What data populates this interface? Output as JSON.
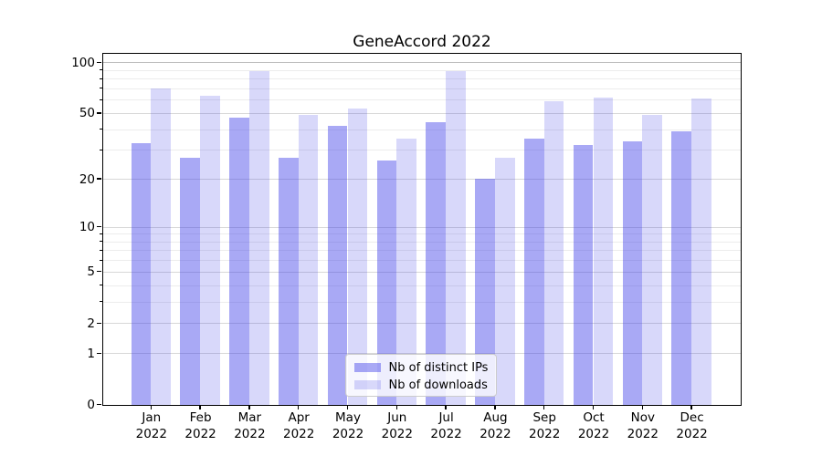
{
  "chart_data": {
    "type": "bar",
    "title": "GeneAccord 2022",
    "categories": [
      "Jan",
      "Feb",
      "Mar",
      "Apr",
      "May",
      "Jun",
      "Jul",
      "Aug",
      "Sep",
      "Oct",
      "Nov",
      "Dec"
    ],
    "category_year": "2022",
    "series": [
      {
        "name": "Nb of distinct IPs",
        "values": [
          33,
          27,
          47,
          27,
          42,
          26,
          44,
          20,
          35,
          32,
          34,
          39
        ],
        "color": "#a7a7f3",
        "rgba": "rgba(60,60,232,0.44)"
      },
      {
        "name": "Nb of downloads",
        "values": [
          70,
          63,
          89,
          49,
          53,
          35,
          89,
          27,
          59,
          62,
          49,
          61
        ],
        "color": "#d8d8f7",
        "rgba": "rgba(60,60,232,0.20)"
      }
    ],
    "y_scale": "log1p",
    "y_major_ticks": [
      100,
      50,
      20,
      10,
      5,
      2,
      1,
      0
    ],
    "y_minor_gridlines": [
      3,
      4,
      6,
      7,
      8,
      9,
      30,
      40,
      60,
      70,
      80,
      90
    ],
    "y_top_value": 113,
    "xlabel": "",
    "ylabel": "",
    "grid": true,
    "legend_position": "lower center",
    "colors": {
      "axis": "#000000",
      "grid_major": "#d8d8d8",
      "grid_minor": "#ececec",
      "legend_border": "#cccccc"
    }
  }
}
